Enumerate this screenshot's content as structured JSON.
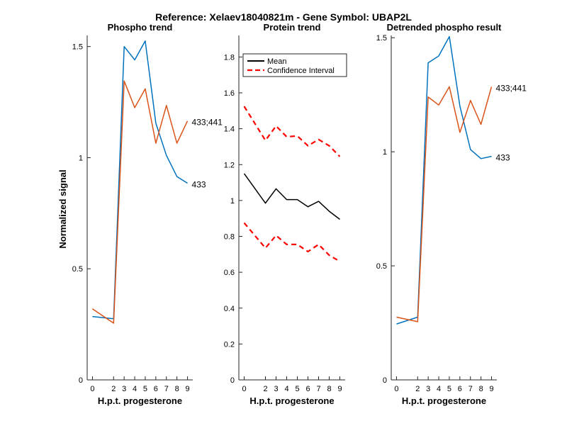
{
  "figure": {
    "suptitle": "Reference:  Xelaev18040821m - Gene Symbol:  UBAP2L"
  },
  "chart_data": [
    {
      "type": "line",
      "title": "Phospho trend",
      "xlabel": "H.p.t. progesterone",
      "ylabel": "Normalized signal",
      "xlim": [
        -0.5,
        9.5
      ],
      "ylim": [
        0,
        1.55
      ],
      "xticks": [
        0,
        2,
        3,
        4,
        5,
        6,
        7,
        8,
        9
      ],
      "yticks": [
        0,
        0.5,
        1,
        1.5
      ],
      "ytick_labels": [
        "0",
        "0.5",
        "1",
        "1.5"
      ],
      "grid": false,
      "x": [
        0,
        2,
        3,
        4,
        5,
        6,
        7,
        8,
        9
      ],
      "series": [
        {
          "label": "433",
          "color": "#0072BD",
          "style": "solid",
          "values": [
            0.285,
            0.275,
            1.5,
            1.44,
            1.525,
            1.155,
            1.01,
            0.915,
            0.885
          ]
        },
        {
          "label": "433;441",
          "color": "#D95319",
          "style": "solid",
          "values": [
            0.32,
            0.255,
            1.345,
            1.225,
            1.31,
            1.065,
            1.235,
            1.065,
            1.165
          ]
        }
      ]
    },
    {
      "type": "line",
      "title": "Protein trend",
      "xlabel": "H.p.t. progesterone",
      "ylabel": "",
      "xlim": [
        -0.5,
        9.5
      ],
      "ylim": [
        0,
        1.92
      ],
      "xticks": [
        0,
        2,
        3,
        4,
        5,
        6,
        7,
        8,
        9
      ],
      "yticks": [
        0,
        0.2,
        0.4,
        0.6,
        0.8,
        1,
        1.2,
        1.4,
        1.6,
        1.8
      ],
      "ytick_labels": [
        "0",
        "0.2",
        "0.4",
        "0.6",
        "0.8",
        "1",
        "1.2",
        "1.4",
        "1.6",
        "1.8"
      ],
      "grid": false,
      "legend": {
        "position": "top-left",
        "entries": [
          {
            "name": "Mean",
            "color": "#000000",
            "style": "solid"
          },
          {
            "name": "Confidence Interval",
            "color": "#FF0000",
            "style": "dashed"
          }
        ]
      },
      "x": [
        0,
        2,
        3,
        4,
        5,
        6,
        7,
        8,
        9
      ],
      "series": [
        {
          "color": "#000000",
          "style": "solid",
          "values": [
            1.15,
            0.985,
            1.065,
            1.005,
            1.005,
            0.965,
            0.995,
            0.94,
            0.895
          ]
        },
        {
          "color": "#FF0000",
          "style": "dashed",
          "values": [
            1.525,
            1.335,
            1.415,
            1.355,
            1.36,
            1.305,
            1.34,
            1.305,
            1.245
          ]
        },
        {
          "color": "#FF0000",
          "style": "dashed",
          "values": [
            0.875,
            0.735,
            0.805,
            0.755,
            0.755,
            0.715,
            0.755,
            0.695,
            0.66
          ]
        }
      ]
    },
    {
      "type": "line",
      "title": "Detrended phospho result",
      "xlabel": "H.p.t. progesterone",
      "ylabel": "",
      "xlim": [
        -0.5,
        9.5
      ],
      "ylim": [
        0,
        1.51
      ],
      "xticks": [
        0,
        2,
        3,
        4,
        5,
        6,
        7,
        8,
        9
      ],
      "yticks": [
        0,
        0.5,
        1,
        1.5
      ],
      "ytick_labels": [
        "0",
        "0.5",
        "1",
        "1.5"
      ],
      "grid": false,
      "x": [
        0,
        2,
        3,
        4,
        5,
        6,
        7,
        8,
        9
      ],
      "series": [
        {
          "label": "433",
          "color": "#0072BD",
          "style": "solid",
          "values": [
            0.245,
            0.275,
            1.39,
            1.42,
            1.505,
            1.2,
            1.01,
            0.97,
            0.98
          ]
        },
        {
          "label": "433;441",
          "color": "#D95319",
          "style": "solid",
          "values": [
            0.275,
            0.255,
            1.24,
            1.205,
            1.285,
            1.085,
            1.225,
            1.12,
            1.285
          ]
        }
      ]
    }
  ]
}
